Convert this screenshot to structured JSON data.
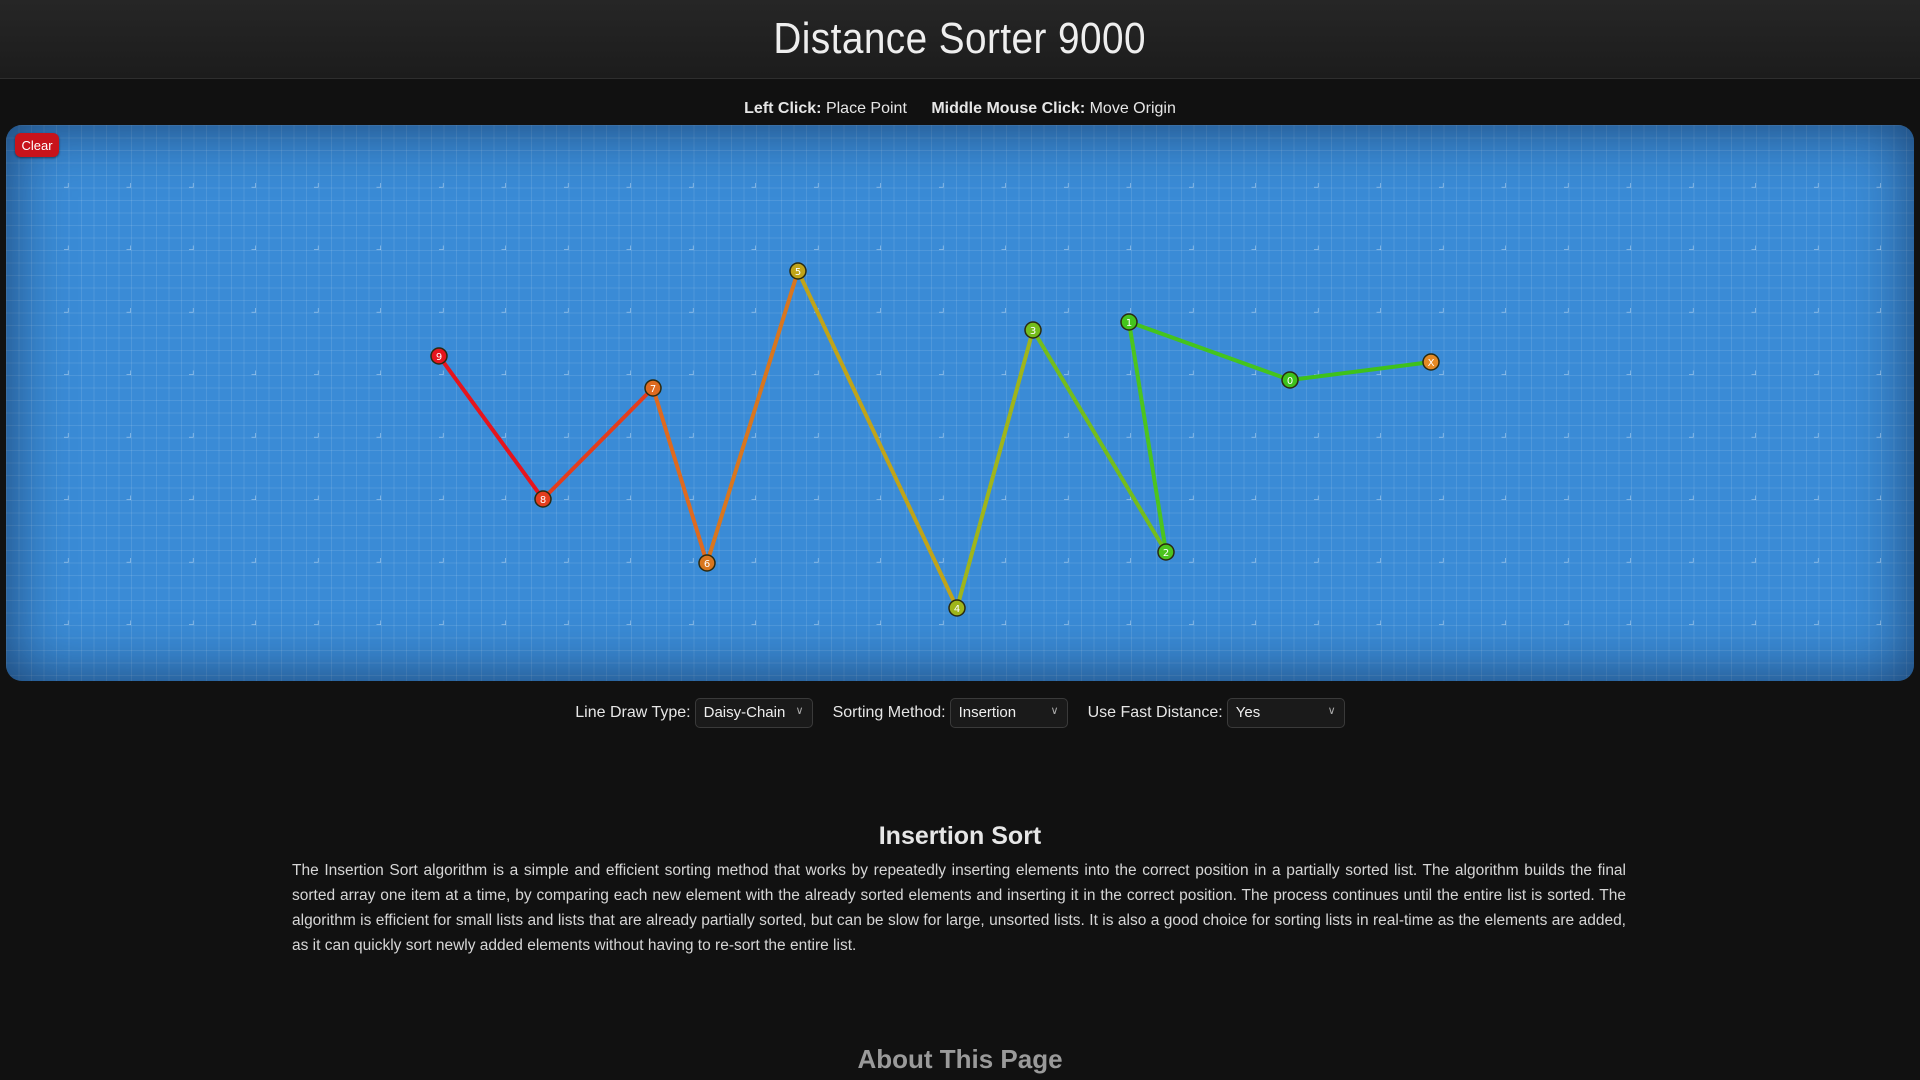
{
  "header": {
    "title": "Distance Sorter 9000"
  },
  "instructions": [
    {
      "key": "Left Click:",
      "action": "Place Point"
    },
    {
      "key": "Middle Mouse Click:",
      "action": "Move Origin"
    }
  ],
  "canvas": {
    "clear_label": "Clear",
    "background_color": "#3a8bd6",
    "points": [
      {
        "label": "X",
        "color": "#e58a25"
      },
      {
        "label": "0",
        "color": "#3ec11b"
      },
      {
        "label": "1",
        "color": "#44c41d"
      },
      {
        "label": "2",
        "color": "#4cc41e"
      },
      {
        "label": "3",
        "color": "#74bd1c"
      },
      {
        "label": "4",
        "color": "#9fb51b"
      },
      {
        "label": "5",
        "color": "#c0a419"
      },
      {
        "label": "6",
        "color": "#d8761f"
      },
      {
        "label": "7",
        "color": "#de6a1f"
      },
      {
        "label": "8",
        "color": "#e33d1d"
      },
      {
        "label": "9",
        "color": "#e5151d"
      }
    ]
  },
  "controls": {
    "line_draw_type": {
      "label": "Line Draw Type:",
      "value": "Daisy-Chain"
    },
    "sorting_method": {
      "label": "Sorting Method:",
      "value": "Insertion"
    },
    "fast_distance": {
      "label": "Use Fast Distance:",
      "value": "Yes"
    }
  },
  "description": {
    "title": "Insertion Sort",
    "text": "The Insertion Sort algorithm is a simple and efficient sorting method that works by repeatedly inserting elements into the correct position in a partially sorted list. The algorithm builds the final sorted array one item at a time, by comparing each new element with the already sorted elements and inserting it in the correct position. The process continues until the entire list is sorted. The algorithm is efficient for small lists and lists that are already partially sorted, but can be slow for large, unsorted lists. It is also a good choice for sorting lists in real-time as the elements are added, as it can quickly sort newly added elements without having to re-sort the entire list."
  },
  "about": {
    "title": "About This Page"
  }
}
